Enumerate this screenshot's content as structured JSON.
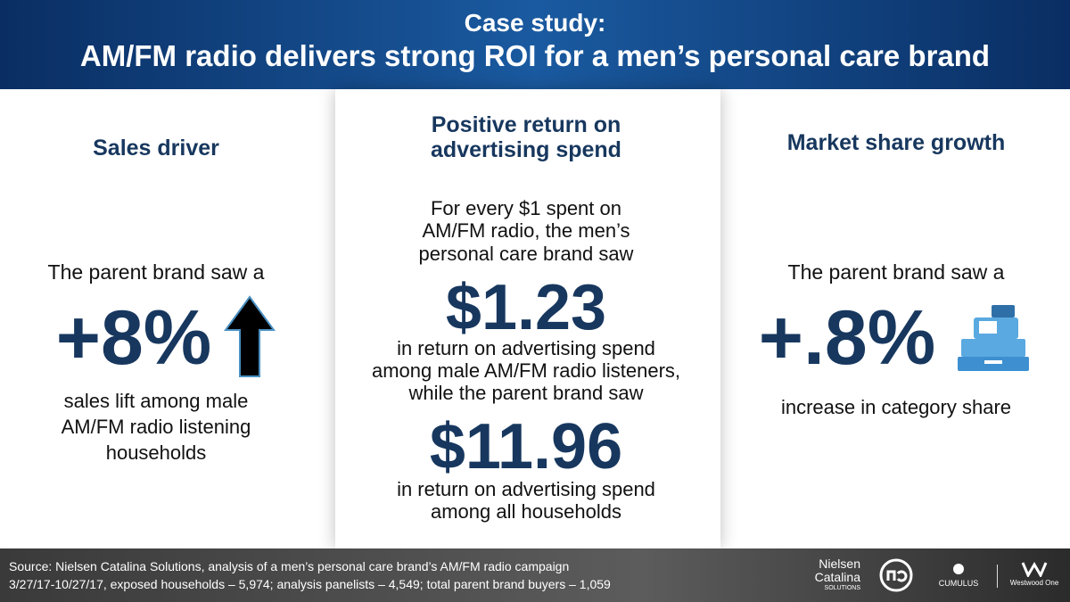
{
  "header": {
    "kicker": "Case study:",
    "title": "AM/FM radio delivers strong ROI for a men’s personal care brand"
  },
  "left": {
    "heading": "Sales driver",
    "intro": "The parent brand saw a",
    "stat": "+8%",
    "caption": [
      "sales lift among male",
      "AM/FM radio listening",
      "households"
    ]
  },
  "middle": {
    "heading": [
      "Positive return on",
      "advertising spend"
    ],
    "intro": [
      "For every $1 spent on",
      "AM/FM radio, the men’s",
      "personal care brand saw"
    ],
    "stat1": "$1.23",
    "text1": [
      "in return on advertising spend",
      "among male AM/FM radio listeners,",
      "while the parent brand saw"
    ],
    "stat2": "$11.96",
    "text2": [
      "in return on advertising spend",
      "among all households"
    ]
  },
  "right": {
    "heading": "Market share growth",
    "intro": "The parent brand saw a",
    "stat": "+.8%",
    "caption": [
      "increase in category share"
    ]
  },
  "footer": {
    "source": [
      "Source: Nielsen Catalina Solutions, analysis of a men’s personal care brand’s AM/FM radio campaign",
      "3/27/17-10/27/17, exposed households – 5,974; analysis panelists – 4,549; total parent brand buyers – 1,059"
    ],
    "logos": {
      "nielsen": [
        "Nielsen",
        "Catalina",
        "SOLUTIONS"
      ],
      "cumulus": "CUMULUS",
      "westwood": "Westwood One"
    }
  }
}
